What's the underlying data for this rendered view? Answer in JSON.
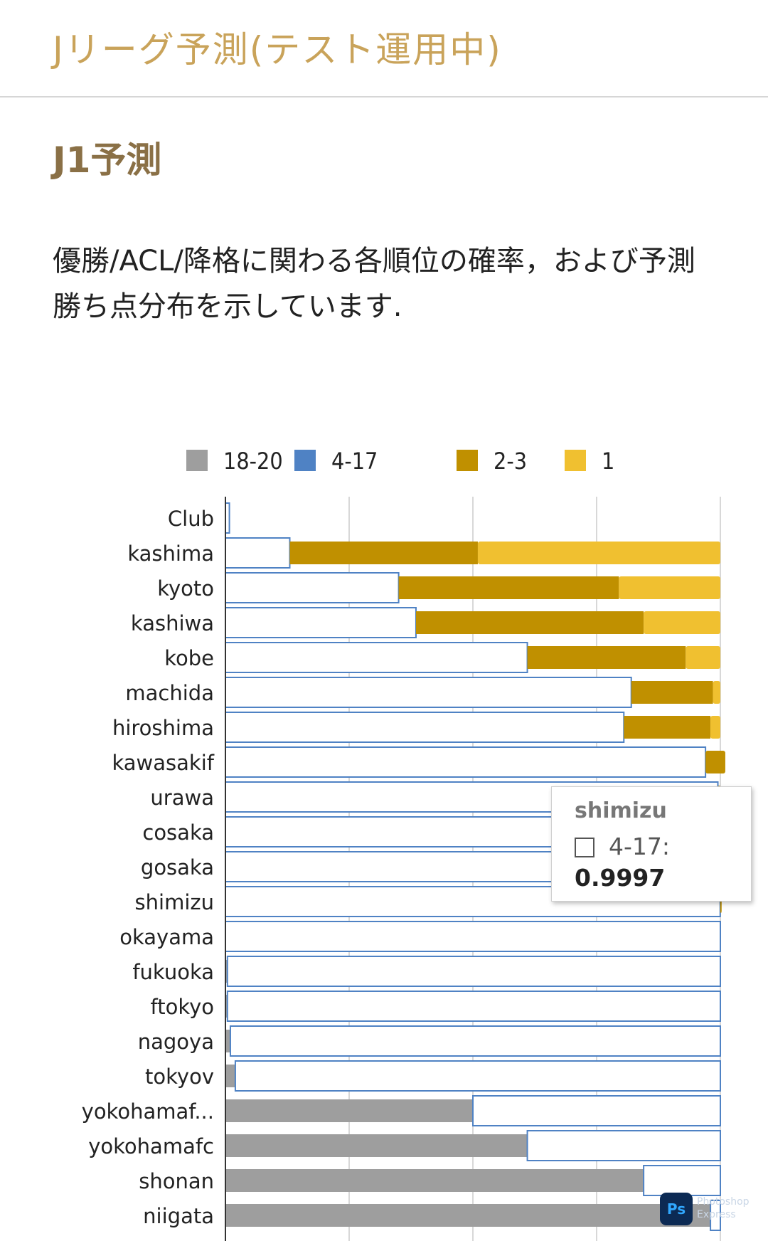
{
  "header": {
    "title": "Jリーグ予測(テスト運用中)"
  },
  "section": {
    "title": "J1予測",
    "description": "優勝/ACL/降格に関わる各順位の確率，および予測勝ち点分布を示しています."
  },
  "colors": {
    "relegation": "#9e9e9e",
    "mid": "#4f82c4",
    "acl": "#c09000",
    "champion": "#f0c030"
  },
  "chart_data": {
    "type": "bar",
    "orientation": "horizontal",
    "stacked": true,
    "xlim": [
      0,
      1
    ],
    "grid": true,
    "legend_position": "top",
    "categories": [
      "Club",
      "kashima",
      "kyoto",
      "kashiwa",
      "kobe",
      "machida",
      "hiroshima",
      "kawasakif",
      "urawa",
      "cosaka",
      "gosaka",
      "shimizu",
      "okayama",
      "fukuoka",
      "ftokyo",
      "nagoya",
      "tokyov",
      "yokohamaf...",
      "yokohamafc",
      "shonan",
      "niigata"
    ],
    "series": [
      {
        "name": "18-20",
        "color": "#9e9e9e",
        "values": [
          0,
          0,
          0,
          0,
          0,
          0,
          0,
          0,
          0,
          0,
          0,
          0,
          0,
          0.004,
          0.004,
          0.01,
          0.02,
          0.5,
          0.61,
          0.845,
          0.98
        ]
      },
      {
        "name": "4-17",
        "color": "#4f82c4",
        "style": "outline",
        "values": [
          0.008,
          0.13,
          0.35,
          0.385,
          0.61,
          0.82,
          0.805,
          0.97,
          0.995,
          0.998,
          0.999,
          0.9997,
          1.0,
          0.996,
          0.996,
          0.99,
          0.98,
          0.5,
          0.39,
          0.155,
          0.02
        ]
      },
      {
        "name": "2-3",
        "color": "#c09000",
        "values": [
          0,
          0.38,
          0.445,
          0.46,
          0.32,
          0.165,
          0.175,
          0.04,
          0.005,
          0.002,
          0.001,
          0.0003,
          0,
          0,
          0,
          0,
          0,
          0,
          0,
          0,
          0
        ]
      },
      {
        "name": "1",
        "color": "#f0c030",
        "values": [
          0,
          0.49,
          0.205,
          0.155,
          0.07,
          0.015,
          0.02,
          0,
          0,
          0,
          0,
          0,
          0,
          0,
          0,
          0,
          0,
          0,
          0,
          0,
          0
        ]
      }
    ]
  },
  "tooltip": {
    "title": "shimizu",
    "series": "4-17:",
    "value": "0.9997"
  },
  "watermark": {
    "badge": "Ps",
    "line1": "Photoshop",
    "line2": "Express"
  }
}
